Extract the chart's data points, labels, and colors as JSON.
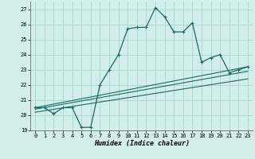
{
  "title": "",
  "xlabel": "Humidex (Indice chaleur)",
  "ylabel": "",
  "background_color": "#d1eeeb",
  "grid_color": "#aed8d4",
  "line_color": "#1a6b60",
  "xlim": [
    -0.5,
    23.5
  ],
  "ylim": [
    19,
    27.5
  ],
  "yticks": [
    19,
    20,
    21,
    22,
    23,
    24,
    25,
    26,
    27
  ],
  "xticks": [
    0,
    1,
    2,
    3,
    4,
    5,
    6,
    7,
    8,
    9,
    10,
    11,
    12,
    13,
    14,
    15,
    16,
    17,
    18,
    19,
    20,
    21,
    22,
    23
  ],
  "main_line_x": [
    0,
    1,
    2,
    3,
    4,
    5,
    6,
    7,
    8,
    9,
    10,
    11,
    12,
    13,
    14,
    15,
    16,
    17,
    18,
    19,
    20,
    21,
    22,
    23
  ],
  "main_line_y": [
    20.5,
    20.5,
    20.1,
    20.5,
    20.5,
    19.2,
    19.2,
    22.0,
    23.0,
    24.0,
    25.7,
    25.8,
    25.8,
    27.1,
    26.5,
    25.5,
    25.5,
    26.1,
    23.5,
    23.8,
    24.0,
    22.8,
    23.0,
    23.2
  ],
  "line2_x": [
    0,
    23
  ],
  "line2_y": [
    20.5,
    23.2
  ],
  "line3_x": [
    0,
    23
  ],
  "line3_y": [
    20.4,
    22.9
  ],
  "line4_x": [
    0,
    23
  ],
  "line4_y": [
    20.2,
    22.4
  ]
}
